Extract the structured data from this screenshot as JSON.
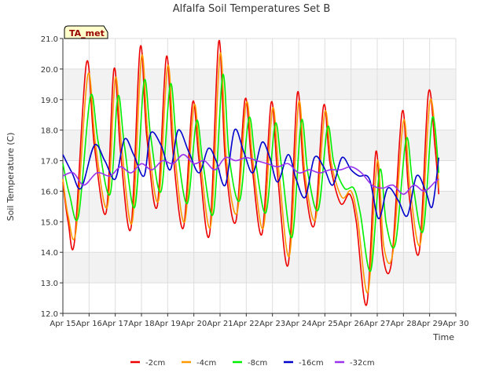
{
  "chart_data": {
    "type": "line",
    "title": "Alfalfa Soil Temperatures Set B",
    "xlabel": "Time",
    "ylabel": "Soil Temperature (C)",
    "annotation": "TA_met",
    "x_ticks": [
      "Apr 15",
      "Apr 16",
      "Apr 17",
      "Apr 18",
      "Apr 19",
      "Apr 20",
      "Apr 21",
      "Apr 22",
      "Apr 23",
      "Apr 24",
      "Apr 25",
      "Apr 26",
      "Apr 27",
      "Apr 28",
      "Apr 29",
      "Apr 30"
    ],
    "xlim": [
      15,
      30
    ],
    "ylim": [
      12,
      21
    ],
    "y_ticks": [
      "12.0",
      "13.0",
      "14.0",
      "15.0",
      "16.0",
      "17.0",
      "18.0",
      "19.0",
      "20.0",
      "21.0"
    ],
    "grid": true,
    "legend_position": "bottom",
    "x_units": "day of April",
    "series": [
      {
        "name": "-2cm",
        "color": "#ee0000",
        "x": [
          15.0,
          15.2,
          15.45,
          15.9,
          16.2,
          16.65,
          16.95,
          17.2,
          17.6,
          17.95,
          18.2,
          18.6,
          18.95,
          19.2,
          19.6,
          19.95,
          20.2,
          20.6,
          20.95,
          21.2,
          21.6,
          21.95,
          22.2,
          22.6,
          22.95,
          23.2,
          23.6,
          23.95,
          24.2,
          24.6,
          24.95,
          25.2,
          25.6,
          25.95,
          26.2,
          26.6,
          26.95,
          27.2,
          27.55,
          27.95,
          28.2,
          28.6,
          28.95,
          29.2,
          29.35
        ],
        "values": [
          16.3,
          15.0,
          14.4,
          20.2,
          17.5,
          15.3,
          20.0,
          17.3,
          14.8,
          20.7,
          17.8,
          15.5,
          20.4,
          17.3,
          14.8,
          18.9,
          17.0,
          14.6,
          20.9,
          17.0,
          15.0,
          19.0,
          17.0,
          14.6,
          18.9,
          16.5,
          13.6,
          19.2,
          16.5,
          14.9,
          18.8,
          16.9,
          15.6,
          15.9,
          15.0,
          12.3,
          17.3,
          14.0,
          13.7,
          18.6,
          16.0,
          14.0,
          19.2,
          17.5,
          15.9
        ]
      },
      {
        "name": "-4cm",
        "color": "#ff9900",
        "x": [
          15.0,
          15.2,
          15.5,
          15.95,
          16.25,
          16.7,
          17.0,
          17.25,
          17.65,
          18.0,
          18.25,
          18.65,
          19.0,
          19.25,
          19.65,
          20.0,
          20.25,
          20.65,
          21.0,
          21.25,
          21.65,
          22.0,
          22.25,
          22.65,
          23.0,
          23.25,
          23.65,
          24.0,
          24.25,
          24.65,
          25.0,
          25.25,
          25.65,
          26.0,
          26.25,
          26.65,
          27.0,
          27.25,
          27.6,
          28.0,
          28.25,
          28.65,
          29.0,
          29.25,
          29.35
        ],
        "values": [
          16.4,
          15.2,
          14.7,
          19.8,
          17.5,
          15.5,
          19.7,
          17.4,
          15.0,
          20.4,
          17.8,
          15.7,
          20.1,
          17.4,
          15.0,
          18.8,
          17.0,
          14.9,
          20.5,
          17.0,
          15.3,
          18.9,
          17.0,
          14.8,
          18.7,
          16.6,
          13.9,
          18.9,
          16.5,
          15.1,
          18.6,
          16.9,
          15.8,
          16.0,
          15.1,
          12.7,
          17.0,
          14.2,
          14.0,
          18.3,
          16.1,
          14.3,
          18.9,
          17.5,
          16.1
        ]
      },
      {
        "name": "-8cm",
        "color": "#00ee00",
        "x": [
          15.0,
          15.25,
          15.6,
          16.05,
          16.35,
          16.8,
          17.1,
          17.35,
          17.75,
          18.1,
          18.35,
          18.75,
          19.1,
          19.35,
          19.75,
          20.1,
          20.35,
          20.75,
          21.1,
          21.35,
          21.75,
          22.1,
          22.35,
          22.75,
          23.1,
          23.35,
          23.75,
          24.1,
          24.35,
          24.75,
          25.1,
          25.35,
          25.75,
          26.1,
          26.35,
          26.75,
          27.1,
          27.35,
          27.7,
          28.1,
          28.35,
          28.75,
          29.1,
          29.35
        ],
        "values": [
          16.9,
          15.9,
          15.2,
          19.1,
          17.6,
          15.9,
          19.1,
          17.5,
          15.5,
          19.6,
          17.8,
          16.0,
          19.5,
          17.5,
          15.6,
          18.3,
          16.9,
          15.3,
          19.8,
          17.1,
          15.7,
          18.4,
          17.0,
          15.3,
          18.2,
          16.8,
          14.5,
          18.3,
          16.6,
          15.4,
          18.1,
          16.9,
          16.1,
          16.1,
          15.3,
          13.4,
          16.7,
          14.9,
          14.3,
          17.7,
          16.3,
          14.7,
          18.4,
          16.6
        ]
      },
      {
        "name": "-16cm",
        "color": "#0000cc",
        "x": [
          15.0,
          15.35,
          15.7,
          16.2,
          16.6,
          17.0,
          17.35,
          17.7,
          18.1,
          18.35,
          18.75,
          19.1,
          19.4,
          19.8,
          20.2,
          20.55,
          20.85,
          21.2,
          21.55,
          21.9,
          22.25,
          22.6,
          22.9,
          23.2,
          23.6,
          23.9,
          24.25,
          24.6,
          24.95,
          25.3,
          25.65,
          26.0,
          26.3,
          26.7,
          27.05,
          27.4,
          27.8,
          28.15,
          28.5,
          28.85,
          29.1,
          29.35
        ],
        "values": [
          17.2,
          16.6,
          16.1,
          17.5,
          17.0,
          16.4,
          17.7,
          17.2,
          16.5,
          17.9,
          17.5,
          16.7,
          18.0,
          17.3,
          16.6,
          17.4,
          17.0,
          16.2,
          18.0,
          17.3,
          16.6,
          17.6,
          17.1,
          16.3,
          17.2,
          16.4,
          15.8,
          17.1,
          16.8,
          16.2,
          17.1,
          16.7,
          16.5,
          16.4,
          15.1,
          16.1,
          15.7,
          15.2,
          16.5,
          16.0,
          15.5,
          17.1
        ]
      },
      {
        "name": "-32cm",
        "color": "#9933ee",
        "x": [
          15.0,
          15.4,
          15.8,
          16.3,
          16.8,
          17.2,
          17.6,
          18.0,
          18.4,
          18.8,
          19.2,
          19.6,
          20.0,
          20.4,
          20.8,
          21.2,
          21.6,
          22.0,
          22.4,
          22.8,
          23.2,
          23.6,
          24.0,
          24.4,
          24.8,
          25.2,
          25.6,
          26.0,
          26.4,
          26.8,
          27.2,
          27.6,
          28.0,
          28.4,
          28.8,
          29.2,
          29.35
        ],
        "values": [
          16.5,
          16.6,
          16.2,
          16.6,
          16.5,
          16.8,
          16.6,
          16.9,
          16.7,
          17.0,
          16.9,
          17.2,
          16.9,
          17.0,
          16.7,
          17.1,
          17.0,
          17.1,
          17.0,
          16.9,
          16.8,
          16.9,
          16.6,
          16.7,
          16.6,
          16.7,
          16.7,
          16.8,
          16.6,
          16.2,
          16.1,
          16.2,
          15.9,
          16.2,
          16.0,
          16.3,
          16.4
        ]
      }
    ]
  }
}
